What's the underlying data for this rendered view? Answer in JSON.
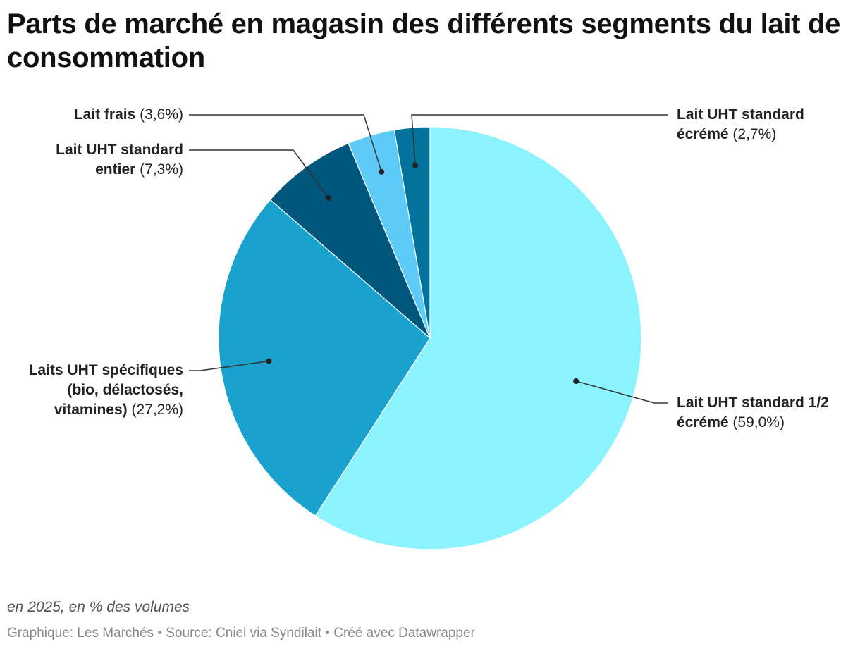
{
  "title": "Parts de marché en magasin des différents segments du lait de consommation",
  "subtitle": "en 2025, en % des volumes",
  "footer": {
    "credit": "Graphique: Les Marchés",
    "source": "Source: Cniel via Syndilait",
    "tool": "Créé avec Datawrapper",
    "separator": " • "
  },
  "chart_data": {
    "type": "pie",
    "title": "Parts de marché en magasin des différents segments du lait de consommation",
    "subtitle": "en 2025, en % des volumes",
    "unit": "%",
    "start": "12 o'clock",
    "direction": "clockwise",
    "slices": [
      {
        "label_lines": [
          "Lait UHT standard 1/2",
          "écrémé"
        ],
        "value": 59.0,
        "display": "(59,0%)",
        "color": "#8bf3fd"
      },
      {
        "label_lines": [
          "Laits UHT spécifiques",
          "(bio, délactosés,",
          "vitamines)"
        ],
        "value": 27.2,
        "display": "(27,2%)",
        "color": "#1aa2ce"
      },
      {
        "label_lines": [
          "Lait UHT standard",
          "entier"
        ],
        "value": 7.3,
        "display": "(7,3%)",
        "color": "#01567b"
      },
      {
        "label_lines": [
          "Lait frais"
        ],
        "value": 3.6,
        "display": "(3,6%)",
        "color": "#5dcaf7"
      },
      {
        "label_lines": [
          "Lait UHT standard",
          "écrémé"
        ],
        "value": 2.7,
        "display": "(2,7%)",
        "color": "#03739d"
      }
    ]
  }
}
